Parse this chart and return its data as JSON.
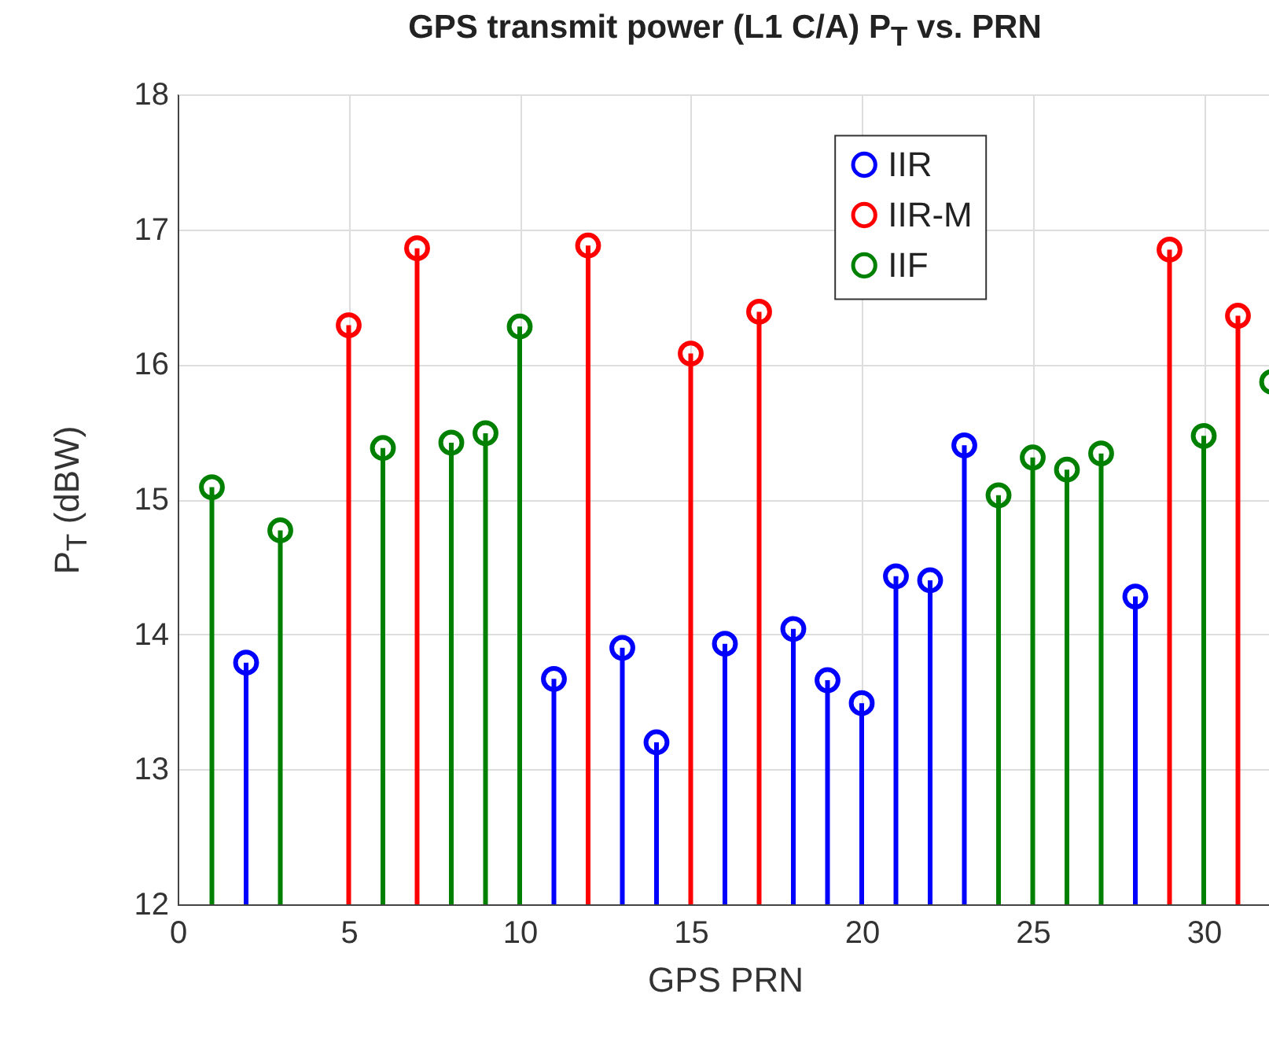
{
  "chart_data": {
    "type": "lollipop",
    "title": "GPS transmit power (L1 C/A) P$_{T}$ vs. PRN",
    "xlabel": "GPS PRN",
    "ylabel": "P$_{T}$ (dBW)",
    "series": [
      {
        "name": "IIR",
        "color": "#0000ff",
        "x": [
          2,
          11,
          13,
          14,
          16,
          18,
          19,
          20,
          21,
          22,
          23,
          28
        ],
        "values": [
          13.79,
          13.67,
          13.9,
          13.2,
          13.93,
          14.04,
          13.66,
          13.49,
          14.43,
          14.4,
          15.4,
          14.28
        ]
      },
      {
        "name": "IIR-M",
        "color": "#ff0000",
        "x": [
          5,
          7,
          12,
          15,
          17,
          29,
          31
        ],
        "values": [
          16.29,
          16.86,
          16.88,
          16.08,
          16.39,
          16.85,
          16.36
        ]
      },
      {
        "name": "IIF",
        "color": "#008000",
        "x": [
          1,
          3,
          6,
          8,
          9,
          10,
          24,
          25,
          26,
          27,
          30,
          32
        ],
        "values": [
          15.09,
          14.77,
          15.38,
          15.42,
          15.49,
          16.28,
          15.03,
          15.31,
          15.22,
          15.34,
          15.47,
          15.87
        ]
      }
    ],
    "xlim": [
      0,
      32
    ],
    "xticks": [
      0,
      5,
      10,
      15,
      20,
      25,
      30
    ],
    "ylim": [
      12,
      18
    ],
    "yticks": [
      12,
      13,
      14,
      15,
      16,
      17,
      18
    ],
    "grid": true,
    "legend": "top right",
    "marker": "circle"
  }
}
